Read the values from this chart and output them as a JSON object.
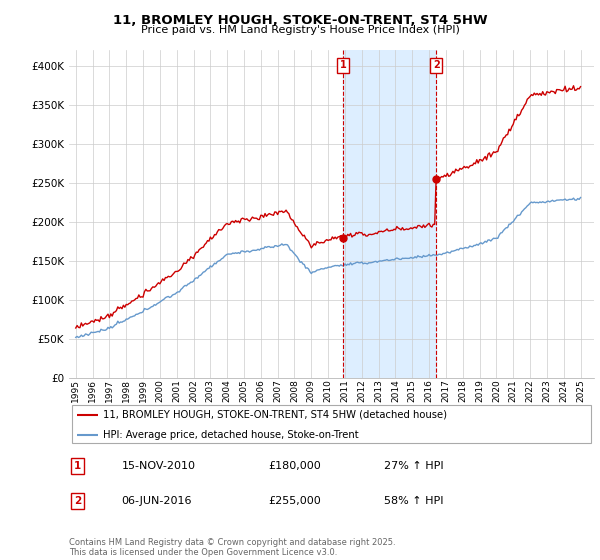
{
  "title": "11, BROMLEY HOUGH, STOKE-ON-TRENT, ST4 5HW",
  "subtitle": "Price paid vs. HM Land Registry's House Price Index (HPI)",
  "legend_line1": "11, BROMLEY HOUGH, STOKE-ON-TRENT, ST4 5HW (detached house)",
  "legend_line2": "HPI: Average price, detached house, Stoke-on-Trent",
  "annotation1_date": "15-NOV-2010",
  "annotation1_price": 180000,
  "annotation1_hpi": "27% ↑ HPI",
  "annotation2_date": "06-JUN-2016",
  "annotation2_price": 255000,
  "annotation2_hpi": "58% ↑ HPI",
  "footer": "Contains HM Land Registry data © Crown copyright and database right 2025.\nThis data is licensed under the Open Government Licence v3.0.",
  "red_color": "#cc0000",
  "blue_color": "#6699cc",
  "shade_color": "#ddeeff",
  "ylim": [
    0,
    420000
  ],
  "yticks": [
    0,
    50000,
    100000,
    150000,
    200000,
    250000,
    300000,
    350000,
    400000
  ],
  "t1": 2010.875,
  "t2": 2016.42,
  "purchase1_value": 180000,
  "purchase2_value": 255000
}
